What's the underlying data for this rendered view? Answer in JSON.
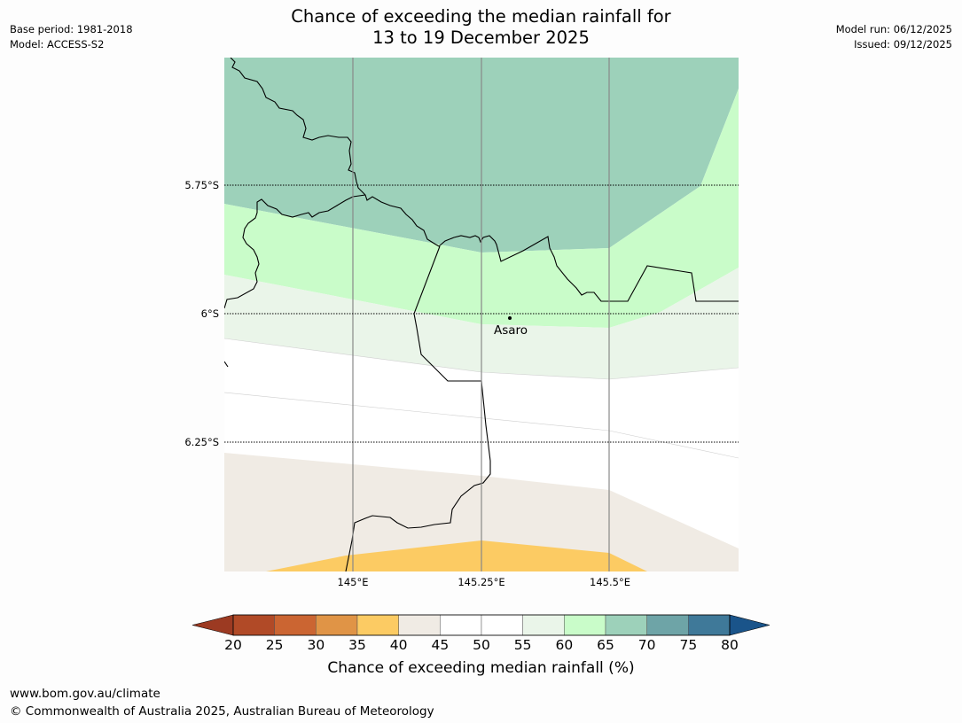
{
  "title_line1": "Chance of exceeding the median rainfall for",
  "title_line2": "13 to 19 December 2025",
  "base_period": "Base period: 1981-2018",
  "model": "Model: ACCESS-S2",
  "model_run": "Model run: 06/12/2025",
  "issued": "Issued: 09/12/2025",
  "latitude_labels": [
    "5.75°S",
    "6°S",
    "6.25°S"
  ],
  "longitude_labels": [
    "145°E",
    "145.25°E",
    "145.5°E"
  ],
  "place_label": "Asaro",
  "colorbar": {
    "ticks": [
      "20",
      "25",
      "30",
      "35",
      "40",
      "45",
      "50",
      "55",
      "60",
      "65",
      "70",
      "75",
      "80"
    ],
    "colors": [
      "#9c3a22",
      "#b14a27",
      "#cb6532",
      "#e09446",
      "#fccb63",
      "#f0ebe4",
      "#ffffff",
      "#ffffff",
      "#eaf5e9",
      "#c9fcc9",
      "#9dd1ba",
      "#6ea4a7",
      "#3f7999",
      "#1a548a"
    ],
    "title": "Chance of exceeding median rainfall (%)"
  },
  "footer_url": "www.bom.gov.au/climate",
  "footer_copyright": "© Commonwealth of Australia 2025, Australian Bureau of Meteorology"
}
